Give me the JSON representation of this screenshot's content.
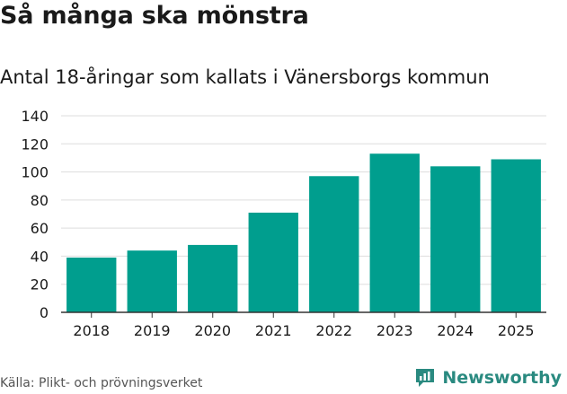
{
  "header": {
    "title": "Så många ska mönstra",
    "subtitle": "Antal 18-åringar som kallats i Vänersborgs kommun"
  },
  "footer": {
    "source": "Källa: Plikt- och prövningsverket",
    "brand": "Newsworthy",
    "brand_icon": "newsworthy-logo-icon"
  },
  "colors": {
    "bar": "#009e8e",
    "grid": "#dddddd",
    "axis": "#333333",
    "brand": "#2a8a80"
  },
  "chart_data": {
    "type": "bar",
    "title": "Så många ska mönstra",
    "subtitle": "Antal 18-åringar som kallats i Vänersborgs kommun",
    "xlabel": "",
    "ylabel": "",
    "categories": [
      "2018",
      "2019",
      "2020",
      "2021",
      "2022",
      "2023",
      "2024",
      "2025"
    ],
    "values": [
      39,
      44,
      48,
      71,
      97,
      113,
      104,
      109
    ],
    "ylim": [
      0,
      140
    ],
    "yticks": [
      0,
      20,
      40,
      60,
      80,
      100,
      120,
      140
    ],
    "grid": true,
    "legend": "none"
  }
}
